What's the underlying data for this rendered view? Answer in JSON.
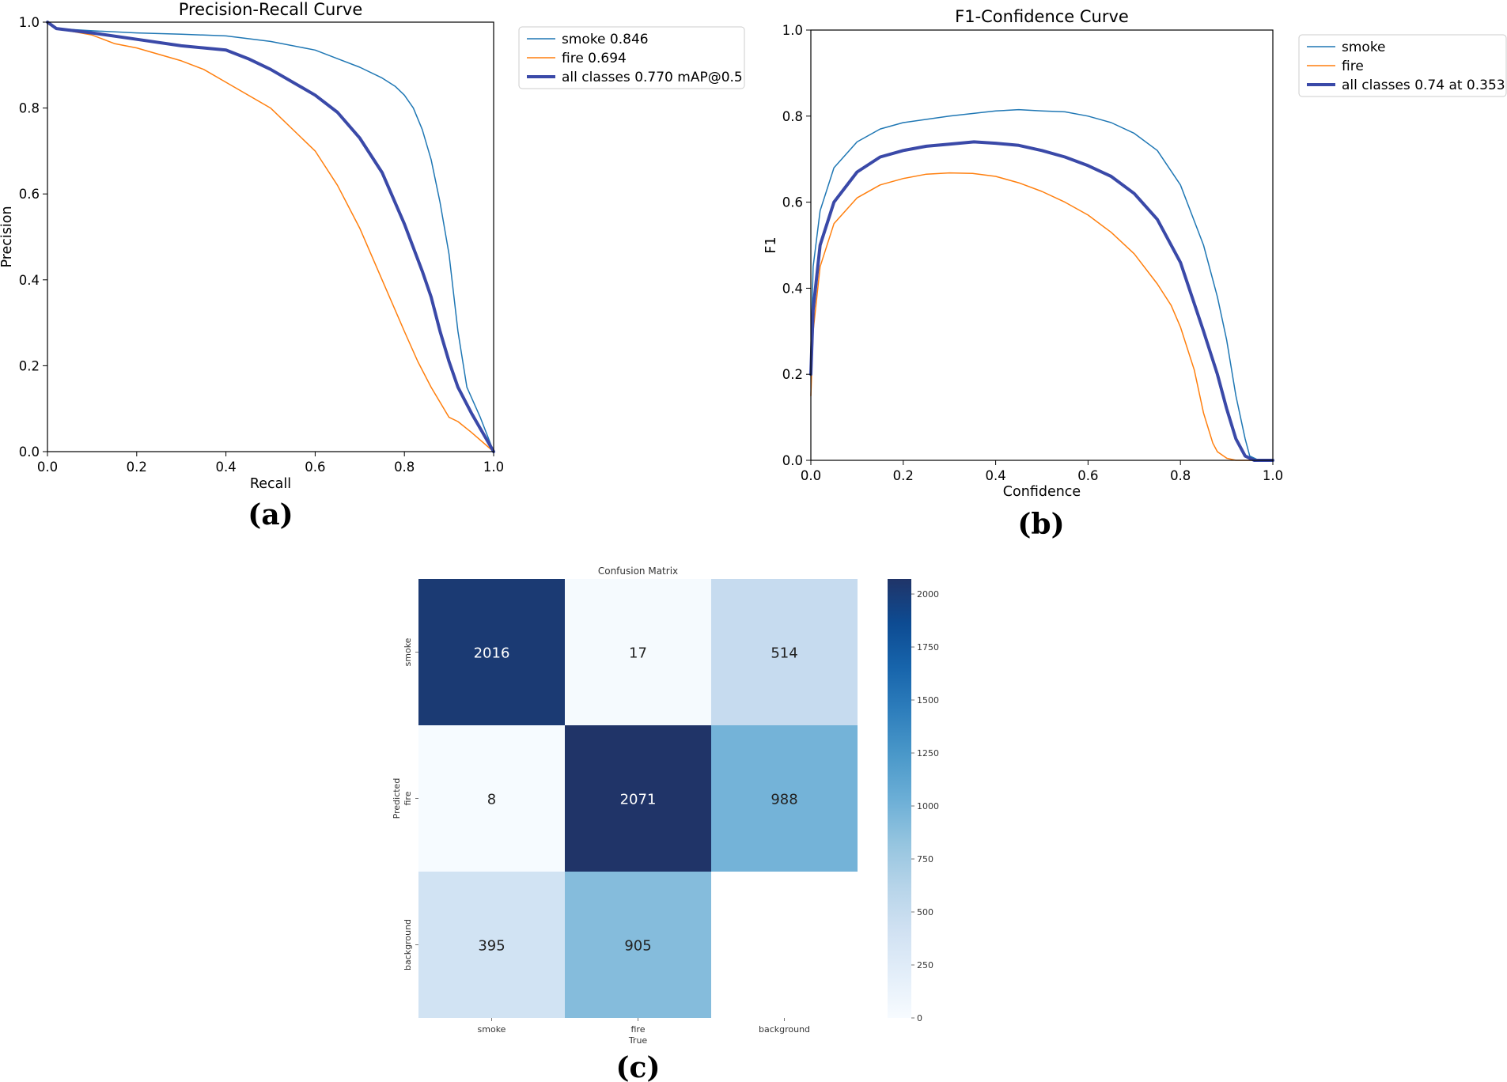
{
  "chart_data": [
    {
      "type": "line",
      "title": "Precision-Recall Curve",
      "xlabel": "Recall",
      "ylabel": "Precision",
      "xlim": [
        0,
        1
      ],
      "ylim": [
        0,
        1
      ],
      "x_ticks": [
        "0.0",
        "0.2",
        "0.4",
        "0.6",
        "0.8",
        "1.0"
      ],
      "y_ticks": [
        "0.0",
        "0.2",
        "0.4",
        "0.6",
        "0.8",
        "1.0"
      ],
      "legend_position": "outside-right-top",
      "panel_label": "(a)",
      "series": [
        {
          "name": "smoke 0.846",
          "color": "#1f77b4",
          "width": 1.5,
          "x": [
            0.0,
            0.02,
            0.1,
            0.2,
            0.3,
            0.4,
            0.5,
            0.6,
            0.65,
            0.7,
            0.75,
            0.78,
            0.8,
            0.82,
            0.84,
            0.86,
            0.88,
            0.9,
            0.92,
            0.94,
            0.97,
            1.0
          ],
          "y": [
            1.0,
            0.985,
            0.98,
            0.975,
            0.972,
            0.968,
            0.955,
            0.935,
            0.915,
            0.895,
            0.87,
            0.85,
            0.83,
            0.8,
            0.75,
            0.68,
            0.58,
            0.46,
            0.28,
            0.15,
            0.08,
            0.0
          ]
        },
        {
          "name": "fire 0.694",
          "color": "#ff7f0e",
          "width": 1.5,
          "x": [
            0.0,
            0.02,
            0.1,
            0.15,
            0.2,
            0.3,
            0.35,
            0.4,
            0.5,
            0.6,
            0.65,
            0.7,
            0.75,
            0.8,
            0.83,
            0.86,
            0.9,
            0.92,
            0.95,
            1.0
          ],
          "y": [
            1.0,
            0.985,
            0.97,
            0.95,
            0.94,
            0.91,
            0.89,
            0.86,
            0.8,
            0.7,
            0.62,
            0.52,
            0.4,
            0.28,
            0.21,
            0.15,
            0.08,
            0.07,
            0.045,
            0.0
          ]
        },
        {
          "name": "all classes 0.770 mAP@0.5",
          "color": "#3a49a8",
          "width": 4,
          "x": [
            0.0,
            0.02,
            0.1,
            0.2,
            0.3,
            0.4,
            0.45,
            0.5,
            0.6,
            0.65,
            0.7,
            0.75,
            0.8,
            0.84,
            0.86,
            0.88,
            0.9,
            0.92,
            0.95,
            1.0
          ],
          "y": [
            1.0,
            0.985,
            0.975,
            0.96,
            0.945,
            0.935,
            0.915,
            0.89,
            0.83,
            0.79,
            0.73,
            0.65,
            0.53,
            0.42,
            0.36,
            0.28,
            0.21,
            0.15,
            0.09,
            0.0
          ]
        }
      ]
    },
    {
      "type": "line",
      "title": "F1-Confidence Curve",
      "xlabel": "Confidence",
      "ylabel": "F1",
      "xlim": [
        0,
        1
      ],
      "ylim": [
        0,
        1
      ],
      "x_ticks": [
        "0.0",
        "0.2",
        "0.4",
        "0.6",
        "0.8",
        "1.0"
      ],
      "y_ticks": [
        "0.0",
        "0.2",
        "0.4",
        "0.6",
        "0.8",
        "1.0"
      ],
      "legend_position": "outside-right-top",
      "panel_label": "(b)",
      "series": [
        {
          "name": "smoke",
          "color": "#1f77b4",
          "width": 1.5,
          "x": [
            0.0,
            0.005,
            0.02,
            0.05,
            0.1,
            0.15,
            0.2,
            0.3,
            0.4,
            0.45,
            0.5,
            0.55,
            0.6,
            0.65,
            0.7,
            0.75,
            0.8,
            0.85,
            0.88,
            0.9,
            0.92,
            0.94,
            0.95,
            0.97,
            1.0
          ],
          "y": [
            0.25,
            0.45,
            0.58,
            0.68,
            0.74,
            0.77,
            0.785,
            0.8,
            0.812,
            0.815,
            0.812,
            0.81,
            0.8,
            0.785,
            0.76,
            0.72,
            0.64,
            0.5,
            0.38,
            0.28,
            0.15,
            0.05,
            0.01,
            0.0,
            0.0
          ]
        },
        {
          "name": "fire",
          "color": "#ff7f0e",
          "width": 1.5,
          "x": [
            0.0,
            0.005,
            0.02,
            0.05,
            0.1,
            0.15,
            0.2,
            0.25,
            0.3,
            0.35,
            0.4,
            0.45,
            0.5,
            0.55,
            0.6,
            0.65,
            0.7,
            0.75,
            0.78,
            0.8,
            0.83,
            0.85,
            0.87,
            0.88,
            0.9,
            0.92,
            1.0
          ],
          "y": [
            0.15,
            0.3,
            0.45,
            0.55,
            0.61,
            0.64,
            0.655,
            0.665,
            0.668,
            0.667,
            0.66,
            0.645,
            0.625,
            0.6,
            0.57,
            0.53,
            0.48,
            0.41,
            0.36,
            0.31,
            0.21,
            0.11,
            0.04,
            0.02,
            0.005,
            0.0,
            0.0
          ]
        },
        {
          "name": "all classes 0.74 at 0.353",
          "color": "#3a49a8",
          "width": 4,
          "x": [
            0.0,
            0.005,
            0.02,
            0.05,
            0.1,
            0.15,
            0.2,
            0.25,
            0.3,
            0.353,
            0.4,
            0.45,
            0.5,
            0.55,
            0.6,
            0.65,
            0.7,
            0.75,
            0.8,
            0.85,
            0.88,
            0.9,
            0.92,
            0.94,
            0.96,
            1.0
          ],
          "y": [
            0.2,
            0.35,
            0.5,
            0.6,
            0.67,
            0.705,
            0.72,
            0.73,
            0.735,
            0.74,
            0.737,
            0.732,
            0.72,
            0.705,
            0.685,
            0.66,
            0.62,
            0.56,
            0.46,
            0.3,
            0.2,
            0.12,
            0.05,
            0.01,
            0.0,
            0.0
          ]
        }
      ]
    },
    {
      "type": "heatmap",
      "title": "Confusion Matrix",
      "xlabel": "True",
      "ylabel": "Predicted",
      "x_categories": [
        "smoke",
        "fire",
        "background"
      ],
      "y_categories": [
        "smoke",
        "fire",
        "background"
      ],
      "values": [
        [
          2016,
          17,
          514
        ],
        [
          8,
          2071,
          988
        ],
        [
          395,
          905,
          null
        ]
      ],
      "colormap": "Blues",
      "colorbar_range": [
        0,
        2071
      ],
      "colorbar_ticks": [
        "0",
        "250",
        "500",
        "750",
        "1000",
        "1250",
        "1500",
        "1750",
        "2000"
      ],
      "panel_label": "(c)"
    }
  ]
}
